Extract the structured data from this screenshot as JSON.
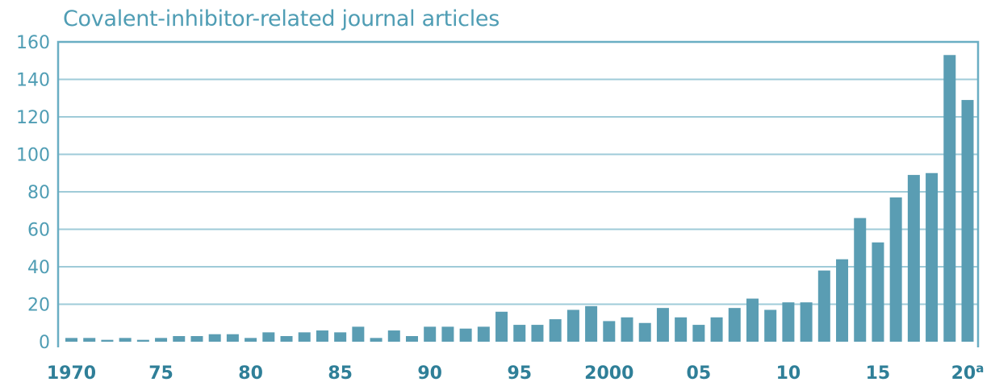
{
  "chart_data": {
    "type": "bar",
    "title": "Covalent-inhibitor-related journal articles",
    "xlabel": "",
    "ylabel": "",
    "ylim": [
      0,
      160
    ],
    "y_ticks": [
      0,
      20,
      40,
      60,
      80,
      100,
      120,
      140,
      160
    ],
    "x_tick_labels": [
      {
        "year": 1970,
        "label": "1970"
      },
      {
        "year": 1975,
        "label": "75"
      },
      {
        "year": 1980,
        "label": "80"
      },
      {
        "year": 1985,
        "label": "85"
      },
      {
        "year": 1990,
        "label": "90"
      },
      {
        "year": 1995,
        "label": "95"
      },
      {
        "year": 2000,
        "label": "2000"
      },
      {
        "year": 2005,
        "label": "05"
      },
      {
        "year": 2010,
        "label": "10"
      },
      {
        "year": 2015,
        "label": "15"
      },
      {
        "year": 2020,
        "label": "20",
        "superscript": "a"
      }
    ],
    "categories": [
      1970,
      1971,
      1972,
      1973,
      1974,
      1975,
      1976,
      1977,
      1978,
      1979,
      1980,
      1981,
      1982,
      1983,
      1984,
      1985,
      1986,
      1987,
      1988,
      1989,
      1990,
      1991,
      1992,
      1993,
      1994,
      1995,
      1996,
      1997,
      1998,
      1999,
      2000,
      2001,
      2002,
      2003,
      2004,
      2005,
      2006,
      2007,
      2008,
      2009,
      2010,
      2011,
      2012,
      2013,
      2014,
      2015,
      2016,
      2017,
      2018,
      2019,
      2020
    ],
    "values": [
      2,
      2,
      1,
      2,
      1,
      2,
      3,
      3,
      4,
      4,
      2,
      5,
      3,
      5,
      6,
      5,
      8,
      2,
      6,
      3,
      8,
      8,
      7,
      8,
      16,
      9,
      9,
      12,
      17,
      19,
      11,
      13,
      10,
      18,
      13,
      9,
      13,
      18,
      23,
      17,
      21,
      21,
      38,
      44,
      66,
      53,
      77,
      89,
      90,
      153,
      129
    ],
    "grid": true,
    "colors": {
      "bar": "#5a9db3",
      "grid": "#9fcbd8",
      "frame": "#6aaec3",
      "title": "#4f9db4",
      "ytick": "#4f9db4",
      "xtick": "#2f7f98"
    }
  }
}
